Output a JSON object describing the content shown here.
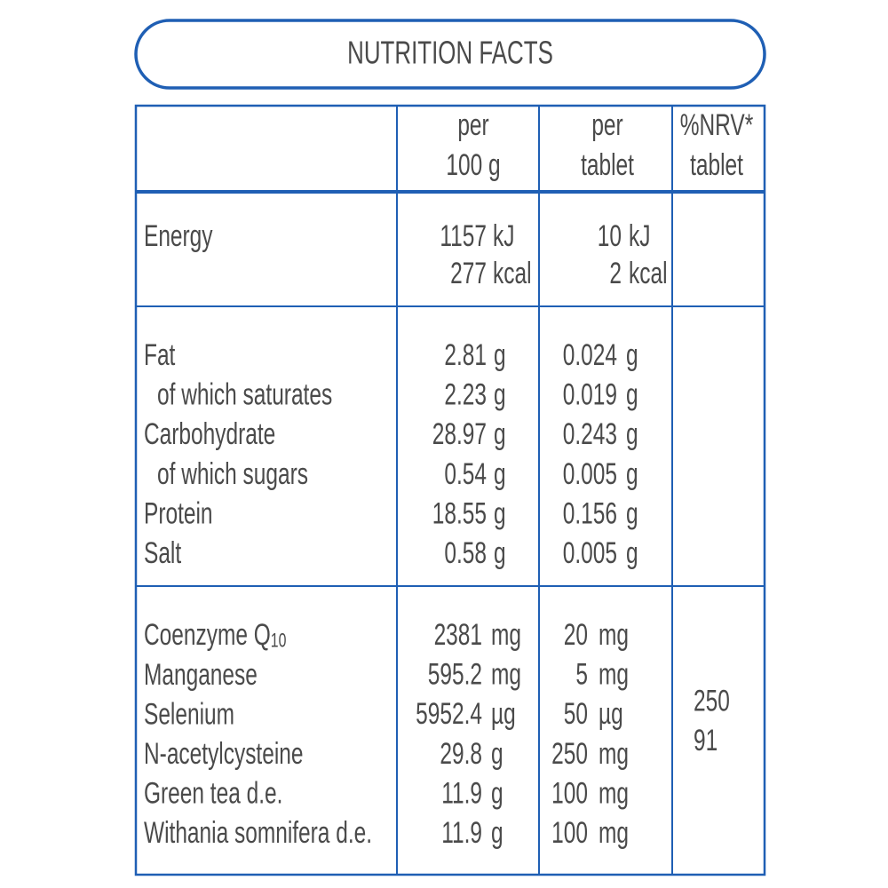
{
  "title": "NUTRITION FACTS",
  "table": {
    "header": [
      [
        "per",
        "100 g"
      ],
      [
        "per",
        "tablet"
      ],
      [
        "%NRV*",
        "tablet"
      ]
    ],
    "energy": {
      "label": "Energy",
      "per_100g": [
        [
          "1157",
          "kJ"
        ],
        [
          "277",
          "kcal"
        ]
      ],
      "per_tablet": [
        [
          "10",
          "kJ"
        ],
        [
          "2",
          "kcal"
        ]
      ]
    },
    "nutrients": [
      {
        "label": "Fat",
        "indent": false,
        "per_100g": [
          "2.81",
          "g"
        ],
        "per_tablet": [
          "0.024",
          "g"
        ]
      },
      {
        "label": "of which saturates",
        "indent": true,
        "per_100g": [
          "2.23",
          "g"
        ],
        "per_tablet": [
          "0.019",
          "g"
        ]
      },
      {
        "label": "Carbohydrate",
        "indent": false,
        "per_100g": [
          "28.97",
          "g"
        ],
        "per_tablet": [
          "0.243",
          "g"
        ]
      },
      {
        "label": "of which sugars",
        "indent": true,
        "per_100g": [
          "0.54",
          "g"
        ],
        "per_tablet": [
          "0.005",
          "g"
        ]
      },
      {
        "label": "Protein",
        "indent": false,
        "per_100g": [
          "18.55",
          "g"
        ],
        "per_tablet": [
          "0.156",
          "g"
        ]
      },
      {
        "label": "Salt",
        "indent": false,
        "per_100g": [
          "0.58",
          "g"
        ],
        "per_tablet": [
          "0.005",
          "g"
        ]
      }
    ],
    "actives": [
      {
        "label": "Coenzyme Q",
        "label_sub": "10",
        "per_100g": [
          "2381",
          "mg"
        ],
        "per_tablet": [
          "20",
          "mg"
        ]
      },
      {
        "label": "Manganese",
        "per_100g": [
          "595.2",
          "mg"
        ],
        "per_tablet": [
          "5",
          "mg"
        ],
        "nrv": "250"
      },
      {
        "label": "Selenium",
        "per_100g": [
          "5952.4",
          "µg"
        ],
        "per_tablet": [
          "50",
          "µg"
        ],
        "nrv": "91"
      },
      {
        "label": "N-acetylcysteine",
        "per_100g": [
          "29.8",
          "g"
        ],
        "per_tablet": [
          "250",
          "mg"
        ]
      },
      {
        "label": "Green tea d.e.",
        "per_100g": [
          "11.9",
          "g"
        ],
        "per_tablet": [
          "100",
          "mg"
        ]
      },
      {
        "label": "Withania somnifera d.e.",
        "per_100g": [
          "11.9",
          "g"
        ],
        "per_tablet": [
          "100",
          "mg"
        ]
      }
    ]
  }
}
